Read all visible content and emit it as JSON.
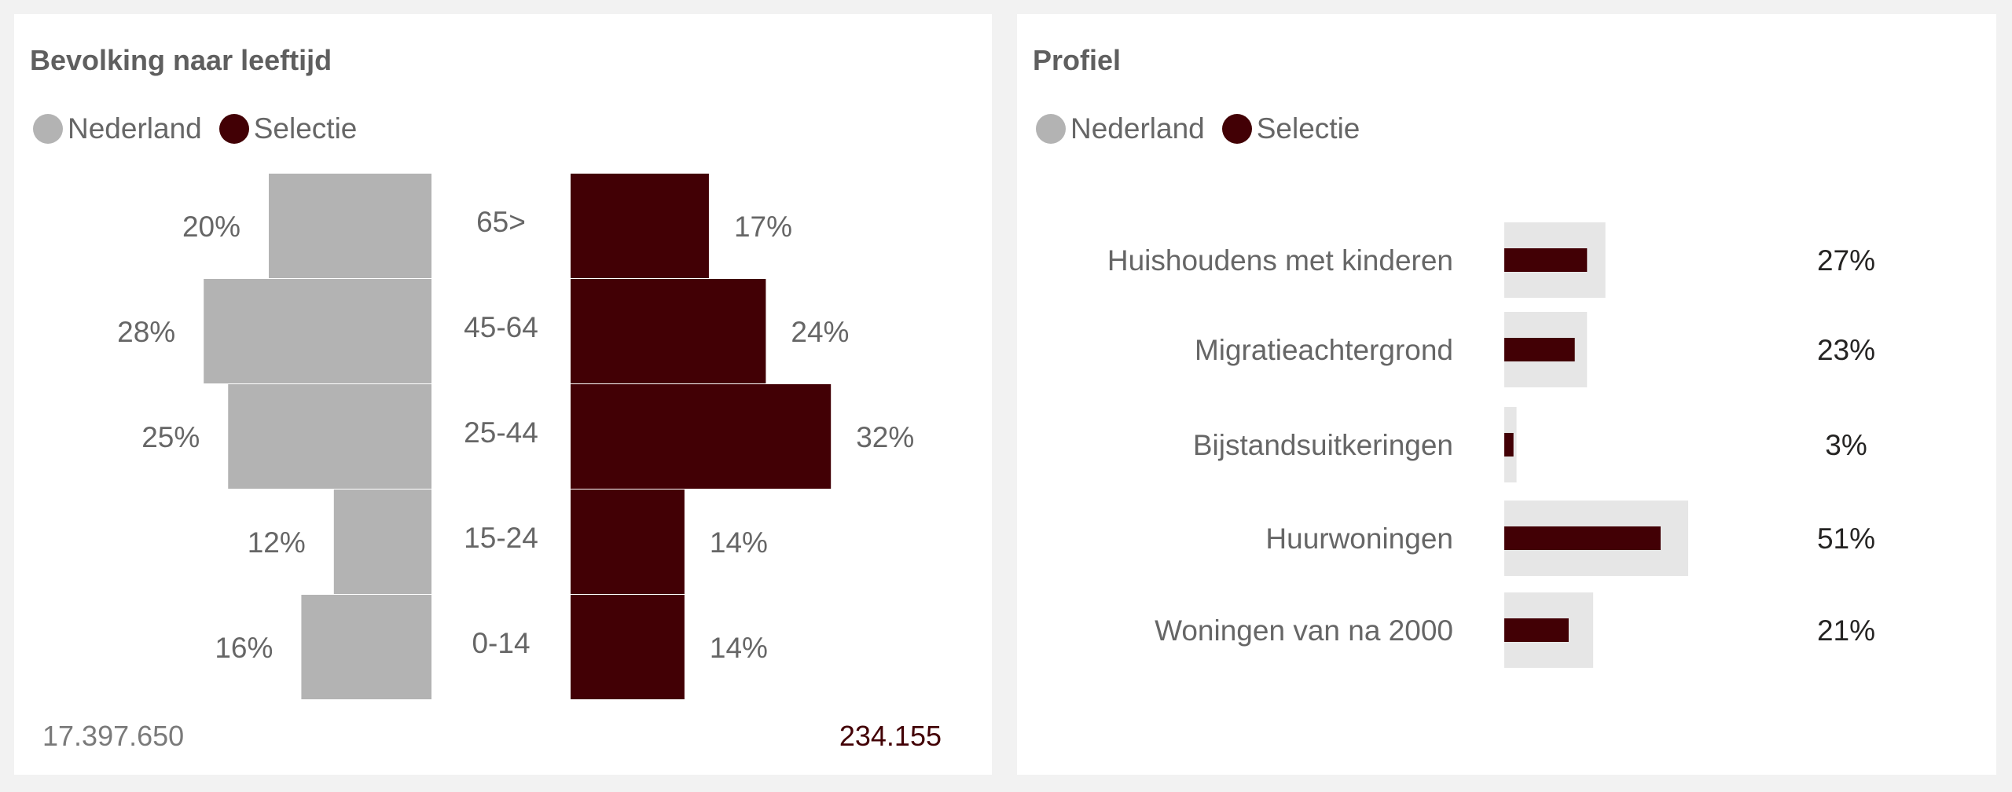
{
  "colors": {
    "nederland": "#b3b3b3",
    "selectie": "#420005",
    "bg": "#f2f2f2",
    "panel": "#ffffff",
    "track": "#e6e6e6"
  },
  "legend": [
    {
      "label": "Nederland",
      "color": "#b3b3b3"
    },
    {
      "label": "Selectie",
      "color": "#420005"
    }
  ],
  "left_panel": {
    "title": "Bevolking naar leeftijd",
    "total_nederland": "17.397.650",
    "total_selectie": "234.155"
  },
  "right_panel": {
    "title": "Profiel"
  },
  "chart_data": [
    {
      "type": "bar",
      "subtype": "population-pyramid",
      "title": "Bevolking naar leeftijd",
      "categories": [
        "65>",
        "45-64",
        "25-44",
        "15-24",
        "0-14"
      ],
      "series": [
        {
          "name": "Nederland",
          "color": "#b3b3b3",
          "values": [
            20,
            28,
            25,
            12,
            16
          ],
          "labels": [
            "20%",
            "28%",
            "25%",
            "12%",
            "16%"
          ]
        },
        {
          "name": "Selectie",
          "color": "#420005",
          "values": [
            17,
            24,
            32,
            14,
            14
          ],
          "labels": [
            "17%",
            "24%",
            "32%",
            "14%",
            "14%"
          ]
        }
      ],
      "value_unit": "%",
      "xlim": [
        0,
        40
      ]
    },
    {
      "type": "bar",
      "orientation": "horizontal",
      "title": "Profiel",
      "categories": [
        "Huishoudens met kinderen",
        "Migratieachtergrond",
        "Bijstandsuitkeringen",
        "Huurwoningen",
        "Woningen van na 2000"
      ],
      "series": [
        {
          "name": "Nederland",
          "color": "#e6e6e6",
          "values": [
            33,
            27,
            4,
            60,
            29
          ]
        },
        {
          "name": "Selectie",
          "color": "#420005",
          "values": [
            27,
            23,
            3,
            51,
            21
          ],
          "labels": [
            "27%",
            "23%",
            "3%",
            "51%",
            "21%"
          ]
        }
      ],
      "value_unit": "%",
      "xlim": [
        0,
        100
      ]
    }
  ]
}
